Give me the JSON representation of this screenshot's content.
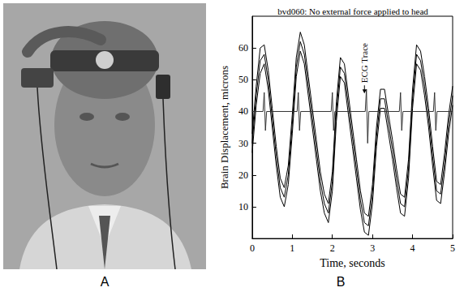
{
  "panel_labels": [
    "A",
    "B"
  ],
  "chart_data": {
    "type": "line",
    "title": "bvd060: No external force applied to head",
    "x_label": "Time, seconds",
    "y_label": "Brain Displacement, microns",
    "xlim": [
      0,
      5
    ],
    "xticks": [
      0,
      1,
      2,
      3,
      4,
      5
    ],
    "ylim": [
      0,
      70
    ],
    "yticks": [
      10,
      20,
      30,
      40,
      50,
      60
    ],
    "grid": false,
    "series": [
      {
        "color": "#000000",
        "line_style": "solid",
        "marker": "none",
        "x": [
          0,
          0.1,
          0.2,
          0.3,
          0.4,
          0.5,
          0.6,
          0.7,
          0.8,
          0.9,
          1,
          1.1,
          1.2,
          1.3,
          1.4,
          1.5,
          1.6,
          1.7,
          1.8,
          1.9,
          2,
          2.1,
          2.2,
          2.3,
          2.4,
          2.5,
          2.6,
          2.7,
          2.8,
          2.9,
          3,
          3.1,
          3.2,
          3.3,
          3.4,
          3.5,
          3.6,
          3.7,
          3.8,
          3.9,
          4,
          4.1,
          4.2,
          4.3,
          4.4,
          4.5,
          4.6,
          4.7,
          4.8,
          4.9,
          5
        ],
        "values": [
          33,
          48,
          60,
          61,
          53,
          41,
          29,
          19,
          16,
          23,
          39,
          57,
          65,
          61,
          51,
          41,
          31,
          21,
          14,
          11,
          21,
          43,
          57,
          55,
          45,
          35,
          25,
          15,
          8,
          7,
          17,
          35,
          47,
          47,
          39,
          31,
          22,
          14,
          13,
          25,
          47,
          61,
          59,
          51,
          41,
          29,
          18,
          17,
          27,
          39,
          48
        ]
      },
      {
        "color": "#000000",
        "line_style": "solid",
        "marker": "none",
        "x": [
          0,
          0.1,
          0.2,
          0.3,
          0.4,
          0.5,
          0.6,
          0.7,
          0.8,
          0.9,
          1,
          1.1,
          1.2,
          1.3,
          1.4,
          1.5,
          1.6,
          1.7,
          1.8,
          1.9,
          2,
          2.1,
          2.2,
          2.3,
          2.4,
          2.5,
          2.6,
          2.7,
          2.8,
          2.9,
          3,
          3.1,
          3.2,
          3.3,
          3.4,
          3.5,
          3.6,
          3.7,
          3.8,
          3.9,
          4,
          4.1,
          4.2,
          4.3,
          4.4,
          4.5,
          4.6,
          4.7,
          4.8,
          4.9,
          5
        ],
        "values": [
          30,
          45,
          56,
          58,
          50,
          38,
          26,
          16,
          13,
          20,
          36,
          54,
          62,
          58,
          48,
          38,
          28,
          18,
          11,
          8,
          18,
          40,
          54,
          52,
          42,
          32,
          22,
          12,
          5,
          4,
          14,
          32,
          44,
          44,
          36,
          28,
          19,
          11,
          10,
          22,
          44,
          58,
          56,
          48,
          38,
          26,
          15,
          14,
          24,
          36,
          45
        ]
      },
      {
        "color": "#000000",
        "line_style": "solid",
        "marker": "none",
        "x": [
          0,
          0.1,
          0.2,
          0.3,
          0.4,
          0.5,
          0.6,
          0.7,
          0.8,
          0.9,
          1,
          1.1,
          1.2,
          1.3,
          1.4,
          1.5,
          1.6,
          1.7,
          1.8,
          1.9,
          2,
          2.1,
          2.2,
          2.3,
          2.4,
          2.5,
          2.6,
          2.7,
          2.8,
          2.9,
          3,
          3.1,
          3.2,
          3.3,
          3.4,
          3.5,
          3.6,
          3.7,
          3.8,
          3.9,
          4,
          4.1,
          4.2,
          4.3,
          4.4,
          4.5,
          4.6,
          4.7,
          4.8,
          4.9,
          5
        ],
        "values": [
          27,
          42,
          52,
          55,
          47,
          35,
          23,
          13,
          10,
          17,
          33,
          51,
          59,
          55,
          45,
          35,
          25,
          15,
          8,
          5,
          15,
          37,
          51,
          49,
          39,
          29,
          19,
          9,
          2,
          1,
          11,
          29,
          41,
          41,
          33,
          25,
          16,
          8,
          7,
          19,
          41,
          55,
          53,
          45,
          35,
          23,
          12,
          11,
          21,
          33,
          42
        ]
      },
      {
        "color": "#333333",
        "line_style": "solid",
        "marker": "none",
        "x": [
          0,
          0.27,
          0.3,
          0.33,
          0.36,
          1.12,
          1.15,
          1.18,
          1.21,
          1.97,
          2.0,
          2.03,
          2.06,
          2.82,
          2.85,
          2.88,
          2.91,
          3.67,
          3.7,
          3.73,
          3.76,
          4.52,
          4.55,
          4.58,
          4.61,
          5
        ],
        "values": [
          40,
          40,
          46,
          34,
          40,
          40,
          46,
          34,
          40,
          40,
          46,
          34,
          40,
          40,
          47,
          30,
          40,
          40,
          46,
          34,
          40,
          40,
          46,
          34,
          40,
          40
        ]
      }
    ],
    "annotations": [
      {
        "text": "ECG Trace",
        "x": 2.8,
        "y": 49
      }
    ]
  }
}
